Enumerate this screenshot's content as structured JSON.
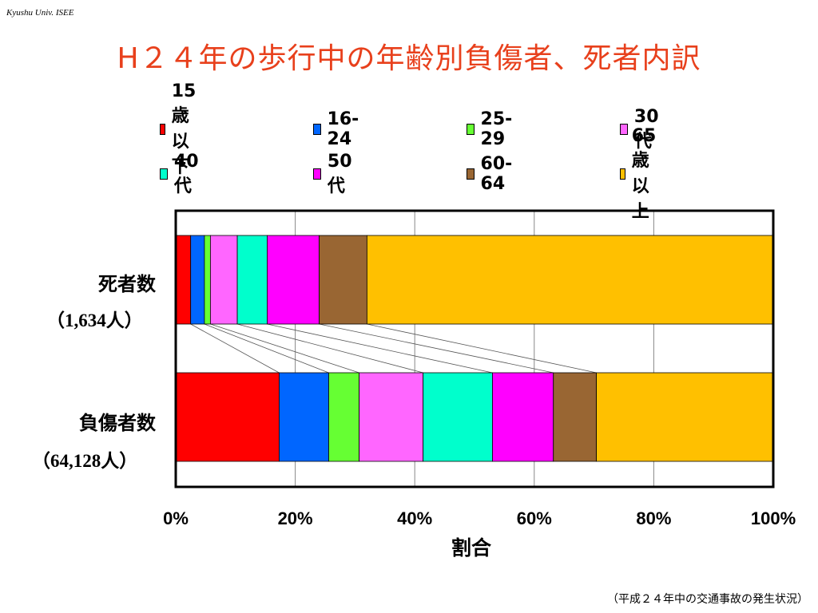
{
  "watermark": "Kyushu Univ. ISEE",
  "title": "H２４年の歩行中の年齢別負傷者、死者内訳",
  "source_note": "（平成２４年中の交通事故の発生状況）",
  "colors": {
    "title": "#e8401c",
    "15歳以下": "#ff0000",
    "16-24": "#0066ff",
    "25-29": "#66ff33",
    "30代": "#ff66ff",
    "40代": "#00ffcc",
    "50代": "#ff00ff",
    "60-64": "#996633",
    "65歳以上": "#ffc000"
  },
  "chart_data": {
    "type": "bar",
    "orientation": "horizontal",
    "stacked": "percent",
    "categories": [
      "死者数",
      "負傷者数"
    ],
    "category_counts": [
      "（1,634人）",
      "（64,128人）"
    ],
    "series": [
      {
        "name": "15歳以下",
        "values": [
          2.5,
          17.3
        ]
      },
      {
        "name": "16-24",
        "values": [
          2.3,
          8.3
        ]
      },
      {
        "name": "25-29",
        "values": [
          1.0,
          5.1
        ]
      },
      {
        "name": "30代",
        "values": [
          4.5,
          10.7
        ]
      },
      {
        "name": "40代",
        "values": [
          5.0,
          11.6
        ]
      },
      {
        "name": "50代",
        "values": [
          8.7,
          10.2
        ]
      },
      {
        "name": "60-64",
        "values": [
          8.0,
          7.2
        ]
      },
      {
        "name": "65歳以上",
        "values": [
          68.0,
          29.6
        ]
      }
    ],
    "xlabel": "割合",
    "xlim": [
      0,
      100
    ],
    "xticks": [
      "0%",
      "20%",
      "40%",
      "60%",
      "80%",
      "100%"
    ],
    "grid": true,
    "legend_position": "top",
    "connector_lines": true
  }
}
